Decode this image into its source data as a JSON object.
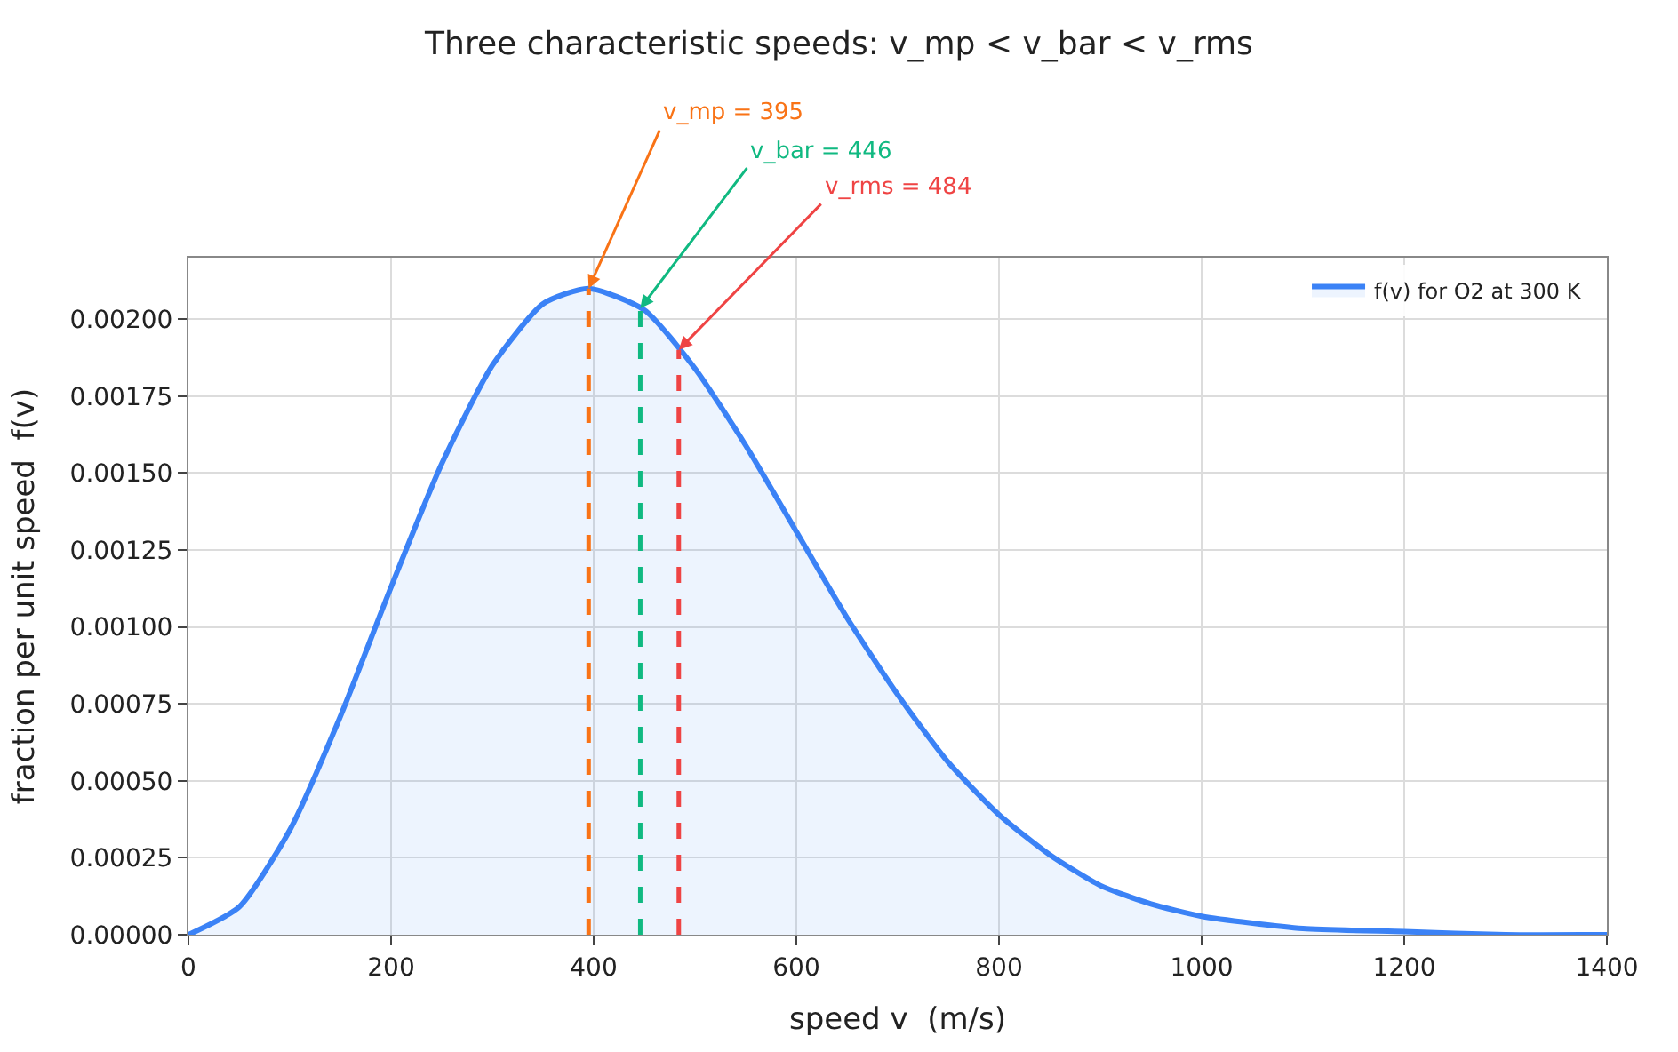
{
  "chart_data": {
    "type": "area",
    "title": "Three characteristic speeds: v_mp < v_bar < v_rms",
    "xlabel": "speed v  (m/s)",
    "ylabel": "fraction per unit speed  f(v)",
    "x": [
      0,
      50,
      100,
      150,
      200,
      250,
      300,
      350,
      395,
      450,
      500,
      550,
      600,
      650,
      700,
      750,
      800,
      850,
      900,
      950,
      1000,
      1100,
      1200,
      1300,
      1400
    ],
    "series": [
      {
        "name": "f(v) for O2 at 300 K",
        "color": "#3b82f6",
        "values": [
          0,
          9e-05,
          0.00034,
          0.00071,
          0.00113,
          0.00153,
          0.00185,
          0.00205,
          0.0021,
          0.00203,
          0.00184,
          0.00159,
          0.00131,
          0.00103,
          0.00078,
          0.00056,
          0.00039,
          0.00026,
          0.00016,
          0.0001,
          6e-05,
          2e-05,
          1e-05,
          0,
          0
        ]
      }
    ],
    "ref_lines": [
      {
        "axis": "x",
        "value": 395,
        "label": "v_mp = 395",
        "color": "#f97316",
        "line_style": "dashed"
      },
      {
        "axis": "x",
        "value": 446,
        "label": "v_bar = 446",
        "color": "#10b981",
        "line_style": "dashed"
      },
      {
        "axis": "x",
        "value": 484,
        "label": "v_rms = 484",
        "color": "#ef4444",
        "line_style": "dashed"
      }
    ],
    "xlim": [
      0,
      1400
    ],
    "xticks": [
      0,
      200,
      400,
      600,
      800,
      1000,
      1200,
      1400
    ],
    "ylim": [
      0,
      0.0022
    ],
    "yticks": [
      {
        "value": 0,
        "label": "0.00000"
      },
      {
        "value": 0.00025,
        "label": "0.00025"
      },
      {
        "value": 0.0005,
        "label": "0.00050"
      },
      {
        "value": 0.00075,
        "label": "0.00075"
      },
      {
        "value": 0.001,
        "label": "0.00100"
      },
      {
        "value": 0.00125,
        "label": "0.00125"
      },
      {
        "value": 0.0015,
        "label": "0.00150"
      },
      {
        "value": 0.00175,
        "label": "0.00175"
      },
      {
        "value": 0.002,
        "label": "0.00200"
      }
    ],
    "grid": true,
    "legend": "top right",
    "line_style": "solid",
    "marker": "none"
  }
}
